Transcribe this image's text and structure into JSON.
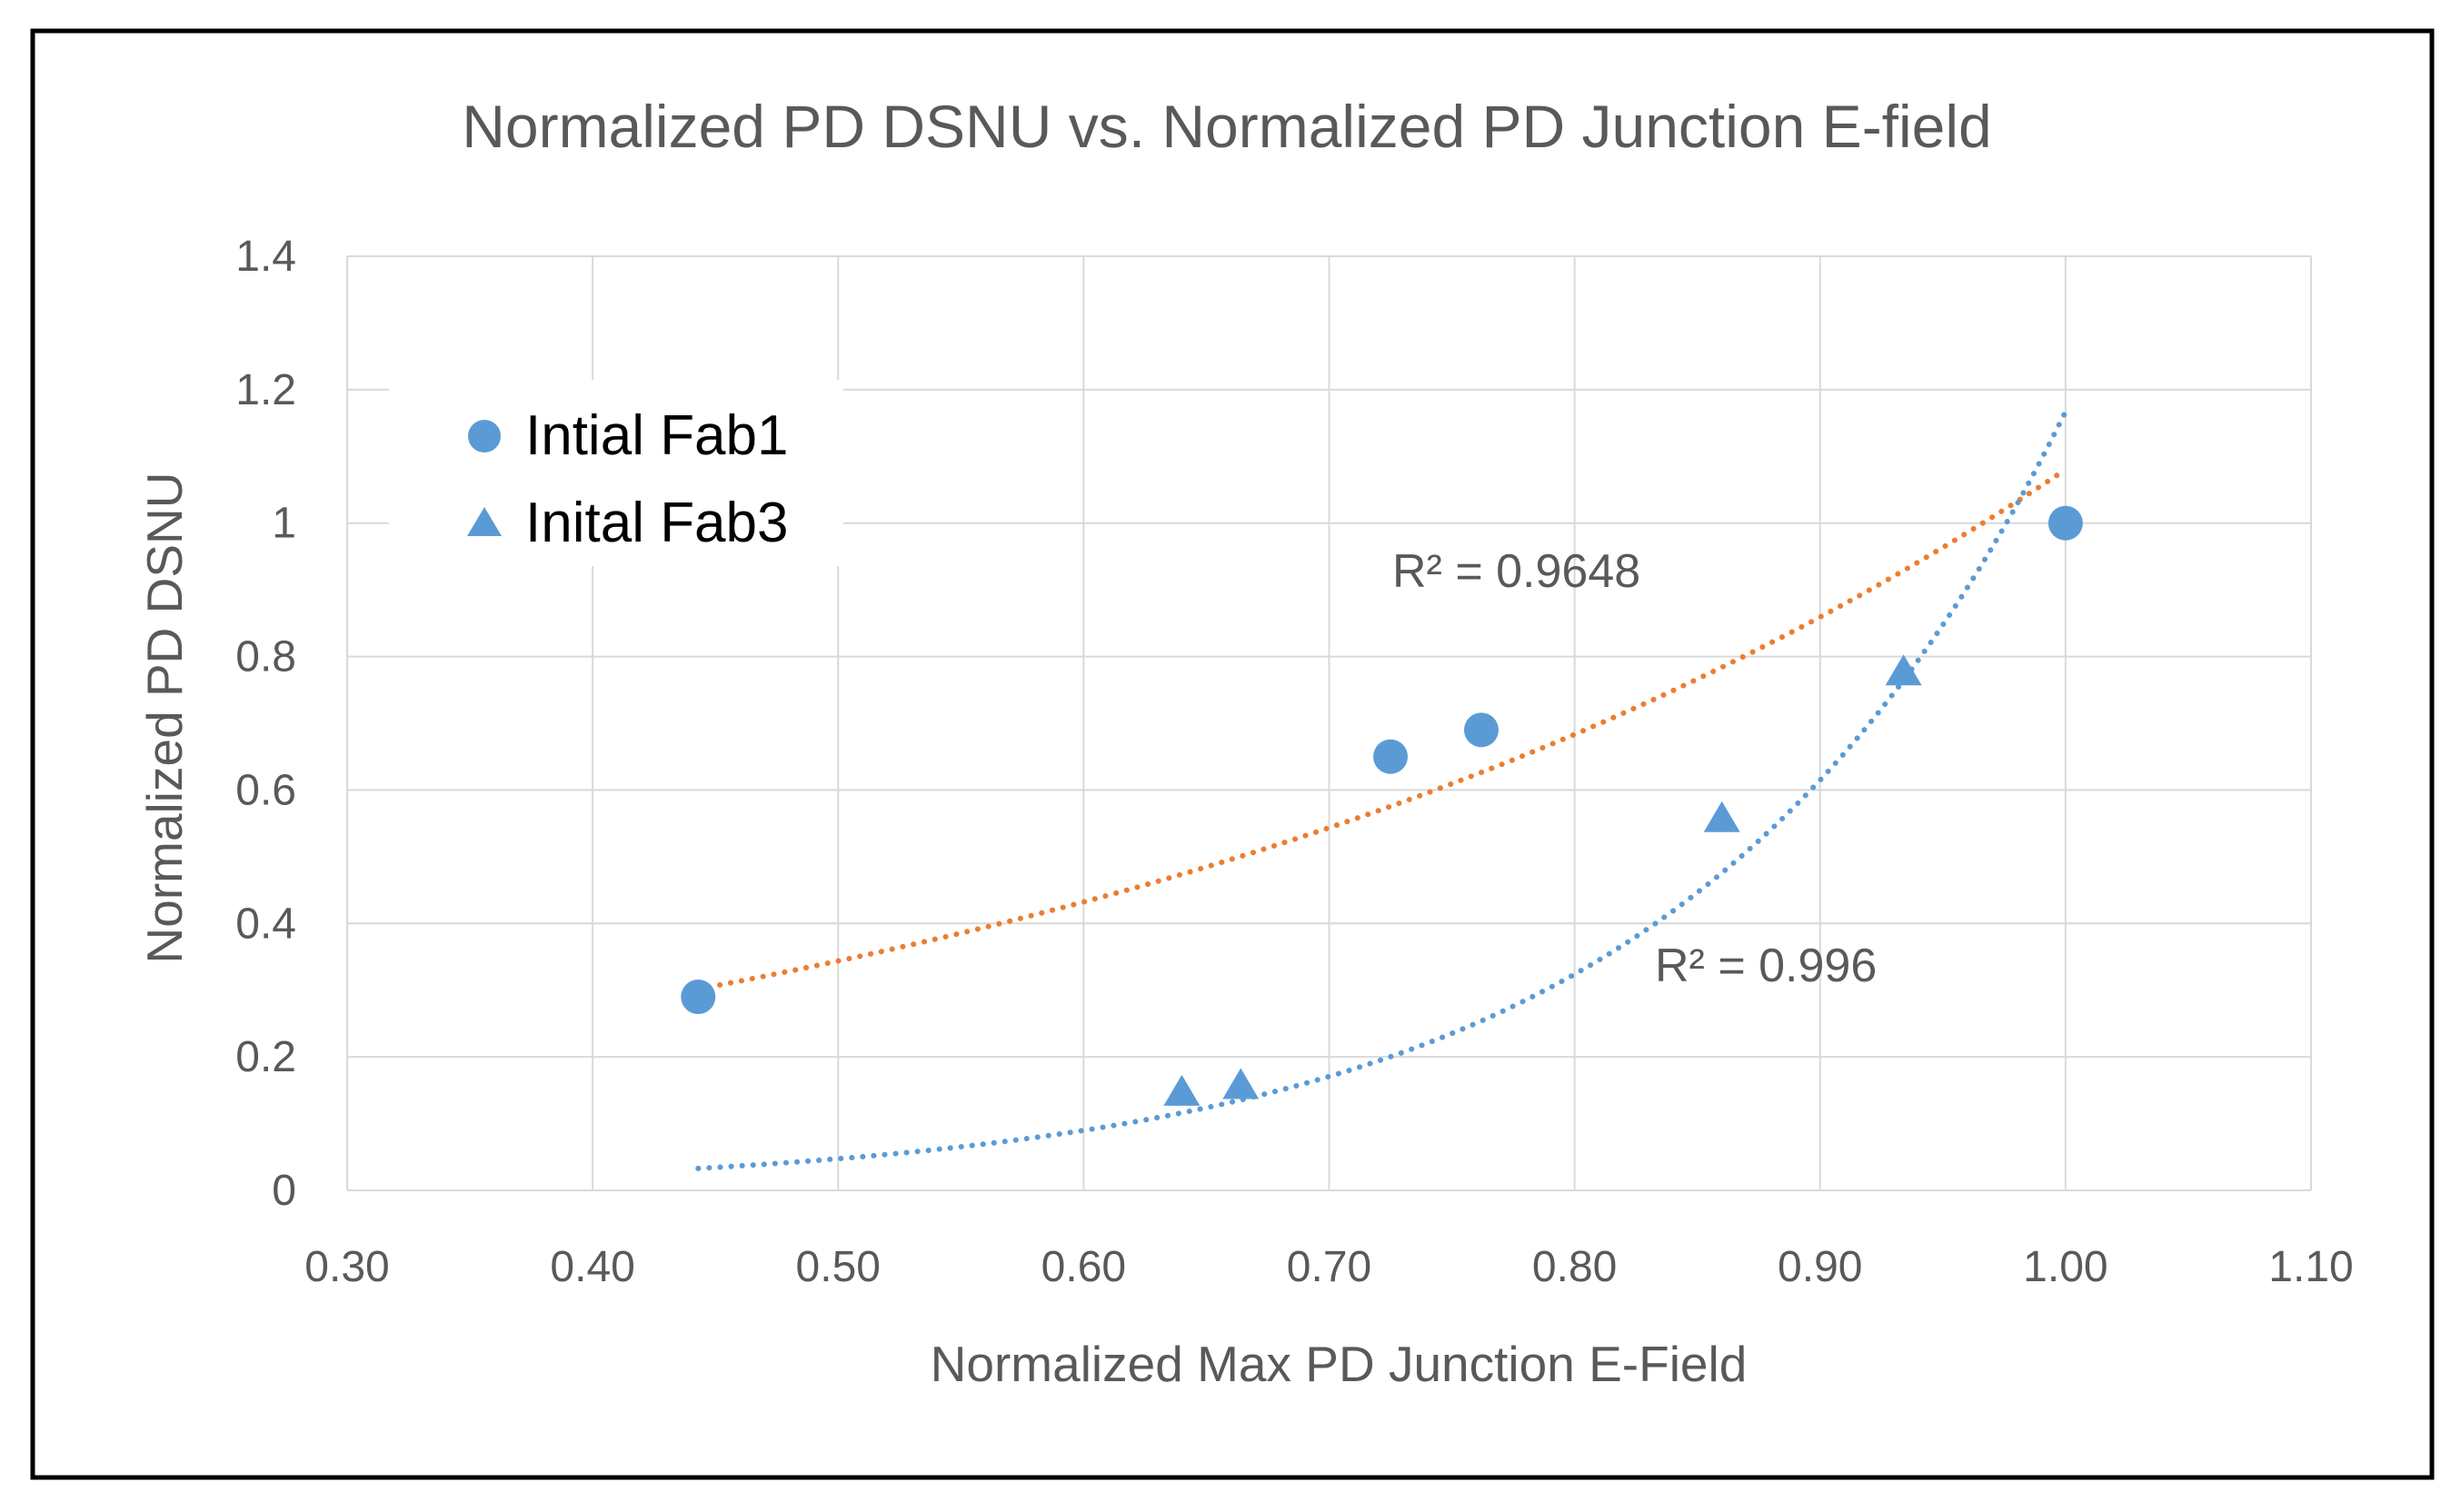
{
  "chart_data": {
    "type": "scatter",
    "title": "Normalized PD DSNU vs. Normalized PD Junction E-field",
    "xlabel": "Normalized Max PD Junction E-Field",
    "ylabel": "Normalized PD DSNU",
    "xlim": [
      0.3,
      1.1
    ],
    "ylim": [
      0,
      1.4
    ],
    "x_ticks": [
      "0.30",
      "0.40",
      "0.50",
      "0.60",
      "0.70",
      "0.80",
      "0.90",
      "1.00",
      "1.10"
    ],
    "y_ticks": [
      "0",
      "0.2",
      "0.4",
      "0.6",
      "0.8",
      "1",
      "1.2",
      "1.4"
    ],
    "grid": true,
    "legend_position": "top-left",
    "series": [
      {
        "name": "Intial Fab1",
        "marker": "circle",
        "color": "#5B9BD5",
        "points": [
          [
            0.443,
            0.29
          ],
          [
            0.725,
            0.65
          ],
          [
            0.762,
            0.69
          ],
          [
            1.0,
            1.0
          ]
        ],
        "trendline": {
          "type": "exponential",
          "a": 0.1094,
          "b": 2.29,
          "x_range": [
            0.443,
            1.0
          ],
          "color": "#ED7D31"
        },
        "r2_label": "R² = 0.9648"
      },
      {
        "name": "Inital Fab3",
        "marker": "triangle",
        "color": "#5B9BD5",
        "points": [
          [
            0.64,
            0.15
          ],
          [
            0.664,
            0.16
          ],
          [
            0.86,
            0.56
          ],
          [
            0.934,
            0.78
          ]
        ],
        "trendline": {
          "type": "exponential",
          "a": 0.00192,
          "b": 6.41,
          "x_range": [
            0.443,
            1.0
          ],
          "color": "#5B9BD5"
        },
        "r2_label": "R² = 0.996"
      }
    ]
  }
}
